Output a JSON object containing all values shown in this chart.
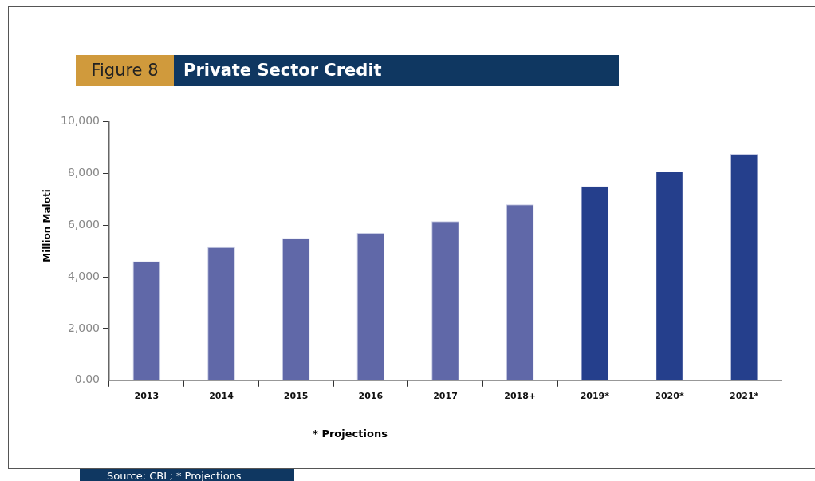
{
  "chart_data": {
    "type": "bar",
    "title": "Private Sector Credit",
    "subtitle": "Figure 8",
    "ylabel": "Million Maloti",
    "categories": [
      "2013",
      "2014",
      "2015",
      "2016",
      "2017",
      "2018+",
      "2019*",
      "2020*",
      "2021*"
    ],
    "values": [
      4600,
      5150,
      5500,
      5700,
      6150,
      6800,
      7500,
      8070,
      8750
    ],
    "colors": [
      "#6068a8",
      "#6068a8",
      "#6068a8",
      "#6068a8",
      "#6068a8",
      "#6068a8",
      "#253f8c",
      "#253f8c",
      "#253f8c"
    ],
    "ylim": [
      0,
      10000
    ],
    "yticks": [
      {
        "value": 0,
        "label": "0.00"
      },
      {
        "value": 2000,
        "label": "2,000"
      },
      {
        "value": 4000,
        "label": "4,000"
      },
      {
        "value": 6000,
        "label": "6,000"
      },
      {
        "value": 8000,
        "label": "8,000"
      },
      {
        "value": 10000,
        "label": "10,000"
      }
    ],
    "grid": false,
    "legend": false,
    "annotations": [
      "* Projections",
      "Source: CBL; * Projections"
    ]
  }
}
